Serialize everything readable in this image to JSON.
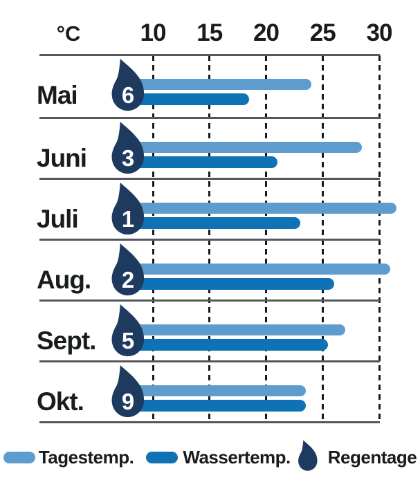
{
  "chart_data": {
    "type": "bar",
    "orientation": "horizontal",
    "title": "",
    "unit_label": "°C",
    "categories": [
      "Mai",
      "Juni",
      "Juli",
      "Aug.",
      "Sept.",
      "Okt."
    ],
    "series": [
      {
        "name": "Tagestemp.",
        "color": "#5F9CCE",
        "values": [
          24,
          28.5,
          31.5,
          31,
          27,
          23.5
        ]
      },
      {
        "name": "Wassertemp.",
        "color": "#0F72B4",
        "values": [
          18.5,
          21,
          23,
          26,
          25.5,
          23.5
        ]
      },
      {
        "name": "Regentage",
        "color": "#1E3A5F",
        "values": [
          6,
          3,
          1,
          2,
          5,
          9
        ]
      }
    ],
    "x_axis": {
      "label": "°C",
      "ticks": [
        10,
        15,
        20,
        25,
        30
      ],
      "min": 0,
      "max": 33,
      "position": "top",
      "grid": "dashed-vertical"
    },
    "legend_position": "bottom"
  },
  "colors": {
    "day_temp": "#5F9CCE",
    "water_temp": "#0F72B4",
    "rain_drop": "#1E3A5F",
    "grid": "#15191d",
    "axis_line": "#53575b",
    "text": "#191c1f"
  },
  "icons": {
    "raindrop": "raindrop-icon"
  }
}
